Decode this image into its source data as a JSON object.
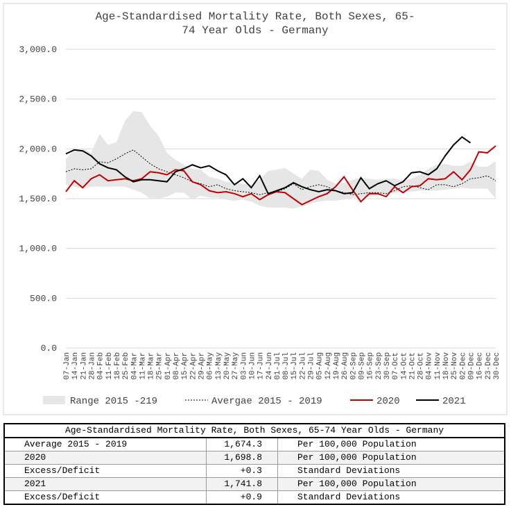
{
  "chart_data": {
    "type": "line",
    "title": [
      "Age-Standardised Mortality Rate, Both Sexes, 65-",
      "74 Year Olds - Germany"
    ],
    "categories": [
      "07-Jan",
      "14-Jan",
      "21-Jan",
      "28-Jan",
      "04-Feb",
      "11-Feb",
      "18-Feb",
      "25-Feb",
      "04-Mar",
      "11-Mar",
      "18-Mar",
      "25-Mar",
      "01-Apr",
      "08-Apr",
      "15-Apr",
      "22-Apr",
      "29-Apr",
      "06-May",
      "13-May",
      "20-May",
      "27-May",
      "03-Jun",
      "10-Jun",
      "17-Jun",
      "24-Jun",
      "01-Jul",
      "08-Jul",
      "15-Jul",
      "22-Jul",
      "29-Jul",
      "05-Aug",
      "12-Aug",
      "19-Aug",
      "26-Aug",
      "02-Sep",
      "09-Sep",
      "16-Sep",
      "23-Sep",
      "30-Sep",
      "07-Oct",
      "14-Oct",
      "21-Oct",
      "28-Oct",
      "04-Nov",
      "11-Nov",
      "18-Nov",
      "25-Nov",
      "02-Dec",
      "09-Dec",
      "16-Dec",
      "23-Dec",
      "30-Dec"
    ],
    "band": {
      "name": "Range 2015 -219",
      "color": "#e6e6e6",
      "low": [
        1640,
        1620,
        1600,
        1620,
        1620,
        1620,
        1620,
        1620,
        1590,
        1560,
        1500,
        1500,
        1520,
        1560,
        1560,
        1490,
        1530,
        1510,
        1510,
        1490,
        1480,
        1490,
        1470,
        1430,
        1410,
        1410,
        1410,
        1400,
        1420,
        1450,
        1470,
        1480,
        1480,
        1490,
        1510,
        1510,
        1520,
        1530,
        1550,
        1560,
        1570,
        1570,
        1580,
        1580,
        1580,
        1590,
        1600,
        1610,
        1600,
        1600,
        1600,
        1500
      ],
      "high": [
        1900,
        1990,
        2010,
        1960,
        2150,
        2040,
        2070,
        2280,
        2380,
        2370,
        2230,
        2130,
        1960,
        1890,
        1840,
        1800,
        1790,
        1720,
        1700,
        1670,
        1660,
        1650,
        1640,
        1690,
        1780,
        1790,
        1810,
        1750,
        1700,
        1790,
        1780,
        1690,
        1650,
        1660,
        1690,
        1710,
        1700,
        1690,
        1700,
        1700,
        1680,
        1700,
        1740,
        1800,
        1840,
        1850,
        1830,
        1830,
        1870,
        1820,
        1820,
        1880
      ]
    },
    "series": [
      {
        "name": "Avergae 2015 - 2019",
        "color": "#000000",
        "dash": true,
        "values": [
          1770,
          1800,
          1790,
          1800,
          1870,
          1860,
          1900,
          1950,
          1990,
          1920,
          1850,
          1800,
          1770,
          1740,
          1710,
          1670,
          1650,
          1620,
          1640,
          1600,
          1580,
          1570,
          1560,
          1540,
          1560,
          1570,
          1600,
          1650,
          1590,
          1620,
          1640,
          1620,
          1580,
          1560,
          1540,
          1550,
          1560,
          1560,
          1550,
          1580,
          1620,
          1630,
          1610,
          1590,
          1640,
          1640,
          1620,
          1650,
          1700,
          1710,
          1730,
          1680
        ]
      },
      {
        "name": "2020",
        "color": "#c00000",
        "values": [
          1570,
          1680,
          1610,
          1700,
          1740,
          1680,
          1690,
          1700,
          1680,
          1700,
          1770,
          1760,
          1740,
          1790,
          1780,
          1670,
          1640,
          1580,
          1560,
          1570,
          1550,
          1520,
          1550,
          1490,
          1540,
          1570,
          1560,
          1500,
          1440,
          1480,
          1520,
          1550,
          1620,
          1720,
          1590,
          1470,
          1550,
          1550,
          1520,
          1620,
          1560,
          1620,
          1630,
          1700,
          1690,
          1700,
          1770,
          1690,
          1790,
          1970,
          1960,
          2030
        ]
      },
      {
        "name": "2021",
        "color": "#000000",
        "values": [
          1950,
          1990,
          1980,
          1930,
          1850,
          1810,
          1790,
          1720,
          1670,
          1690,
          1690,
          1680,
          1670,
          1770,
          1800,
          1840,
          1810,
          1830,
          1780,
          1740,
          1640,
          1700,
          1610,
          1730,
          1550,
          1580,
          1610,
          1660,
          1620,
          1590,
          1570,
          1590,
          1580,
          1550,
          1560,
          1710,
          1600,
          1650,
          1680,
          1630,
          1670,
          1760,
          1770,
          1740,
          1800,
          1930,
          2040,
          2120,
          2060,
          null,
          null,
          null
        ]
      }
    ],
    "ylim": [
      0,
      3000
    ],
    "yticks": [
      {
        "value": 0,
        "label": "0.0"
      },
      {
        "value": 500,
        "label": "500.0"
      },
      {
        "value": 1000,
        "label": "1,000.0"
      },
      {
        "value": 1500,
        "label": "1,500.0"
      },
      {
        "value": 2000,
        "label": "2,000.0"
      },
      {
        "value": 2500,
        "label": "2,500.0"
      },
      {
        "value": 3000,
        "label": "3,000.0"
      }
    ],
    "grid": true,
    "legend": "bottom"
  },
  "table": {
    "title": "Age-Standardised Mortality Rate, Both Sexes, 65-74 Year Olds - Germany",
    "rows": [
      [
        "Average 2015 - 2019",
        "1,674.3",
        "Per 100,000 Population"
      ],
      [
        "2020",
        "1,698.8",
        "Per 100,000 Population"
      ],
      [
        "Excess/Deficit",
        "+0.3",
        "Standard Deviations"
      ],
      [
        "2021",
        "1,741.8",
        "Per 100,000 Population"
      ],
      [
        "Excess/Deficit",
        "+0.9",
        "Standard Deviations"
      ]
    ]
  }
}
